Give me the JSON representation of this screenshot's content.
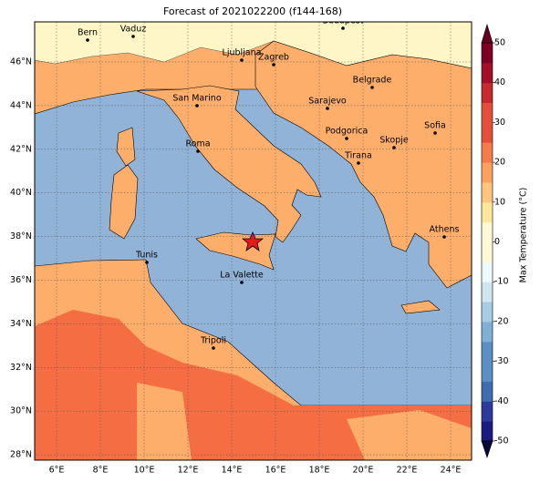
{
  "title": "Forecast of 2021022200 (f144-168)",
  "map": {
    "cities": [
      "Bern",
      "Vaduz",
      "Budapest",
      "Ljubljana",
      "Zagreb",
      "San Marino",
      "Belgrade",
      "Sarajevo",
      "Podgorica",
      "Skopje",
      "Sofia",
      "Tirana",
      "Roma",
      "Athens",
      "Tunis",
      "La Valette",
      "Tripoli"
    ],
    "lon_ticks": [
      "6°E",
      "8°E",
      "10°E",
      "12°E",
      "14°E",
      "16°E",
      "18°E",
      "20°E",
      "22°E",
      "24°E"
    ],
    "lat_ticks": [
      "46°N",
      "44°N",
      "42°N",
      "40°N",
      "38°N",
      "36°N",
      "34°N",
      "32°N",
      "30°N",
      "28°N"
    ]
  },
  "colorbar": {
    "label": "Max Temperature (°C)",
    "ticks": [
      50,
      40,
      30,
      20,
      10,
      0,
      -10,
      -20,
      -30,
      -40,
      -50
    ],
    "lim": [
      -50,
      50
    ]
  }
}
